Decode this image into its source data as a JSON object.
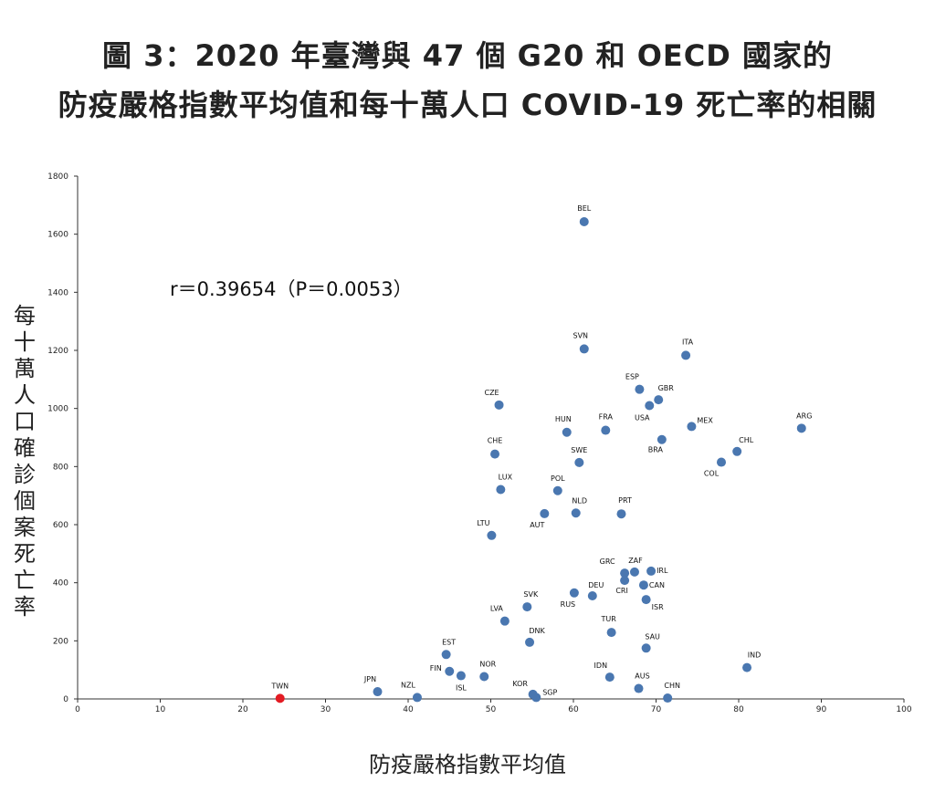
{
  "chart_data": {
    "type": "scatter",
    "title": "圖 3：2020 年臺灣與 47 個 G20 和 OECD 國家的",
    "subtitle": "防疫嚴格指數平均值和每十萬人口 COVID-19 死亡率的相關",
    "xlabel": "防疫嚴格指數平均值",
    "ylabel": "每十萬人口確診個案死亡率",
    "xlim": [
      0,
      100
    ],
    "ylim": [
      0,
      1800
    ],
    "xticks": [
      0,
      10,
      20,
      30,
      40,
      50,
      60,
      70,
      80,
      90,
      100
    ],
    "yticks": [
      0,
      200,
      400,
      600,
      800,
      1000,
      1200,
      1400,
      1600,
      1800
    ],
    "grid": false,
    "annotation": "r＝0.39654（P＝0.0053）",
    "point_color": "#4a77b0",
    "highlight_color": "#e31b23",
    "points": [
      {
        "label": "BEL",
        "x": 61.3,
        "y": 1643
      },
      {
        "label": "SVN",
        "x": 61.3,
        "y": 1205
      },
      {
        "label": "ITA",
        "x": 73.6,
        "y": 1183
      },
      {
        "label": "ESP",
        "x": 68.0,
        "y": 1066
      },
      {
        "label": "GBR",
        "x": 70.3,
        "y": 1030
      },
      {
        "label": "USA",
        "x": 69.2,
        "y": 1010
      },
      {
        "label": "CZE",
        "x": 51.0,
        "y": 1012
      },
      {
        "label": "HUN",
        "x": 59.2,
        "y": 918
      },
      {
        "label": "FRA",
        "x": 63.9,
        "y": 925
      },
      {
        "label": "MEX",
        "x": 74.3,
        "y": 938
      },
      {
        "label": "ARG",
        "x": 87.6,
        "y": 932
      },
      {
        "label": "BRA",
        "x": 70.7,
        "y": 893
      },
      {
        "label": "CHL",
        "x": 79.8,
        "y": 852
      },
      {
        "label": "CHE",
        "x": 50.5,
        "y": 843
      },
      {
        "label": "SWE",
        "x": 60.7,
        "y": 814
      },
      {
        "label": "COL",
        "x": 77.9,
        "y": 815
      },
      {
        "label": "LUX",
        "x": 51.2,
        "y": 721
      },
      {
        "label": "POL",
        "x": 58.1,
        "y": 717
      },
      {
        "label": "NLD",
        "x": 60.3,
        "y": 640
      },
      {
        "label": "AUT",
        "x": 56.5,
        "y": 638
      },
      {
        "label": "PRT",
        "x": 65.8,
        "y": 637
      },
      {
        "label": "LTU",
        "x": 50.1,
        "y": 563
      },
      {
        "label": "ZAF",
        "x": 67.4,
        "y": 437
      },
      {
        "label": "IRL",
        "x": 69.4,
        "y": 440
      },
      {
        "label": "GRC",
        "x": 66.2,
        "y": 433
      },
      {
        "label": "CRI",
        "x": 66.2,
        "y": 408
      },
      {
        "label": "CAN",
        "x": 68.5,
        "y": 392
      },
      {
        "label": "RUS",
        "x": 60.1,
        "y": 365
      },
      {
        "label": "DEU",
        "x": 62.3,
        "y": 355
      },
      {
        "label": "ISR",
        "x": 68.8,
        "y": 342
      },
      {
        "label": "SVK",
        "x": 54.4,
        "y": 317
      },
      {
        "label": "LVA",
        "x": 51.7,
        "y": 268
      },
      {
        "label": "TUR",
        "x": 64.6,
        "y": 229
      },
      {
        "label": "DNK",
        "x": 54.7,
        "y": 195
      },
      {
        "label": "SAU",
        "x": 68.8,
        "y": 175
      },
      {
        "label": "EST",
        "x": 44.6,
        "y": 153
      },
      {
        "label": "IND",
        "x": 81.0,
        "y": 108
      },
      {
        "label": "FIN",
        "x": 45.0,
        "y": 95
      },
      {
        "label": "ISL",
        "x": 46.4,
        "y": 80
      },
      {
        "label": "NOR",
        "x": 49.2,
        "y": 77
      },
      {
        "label": "IDN",
        "x": 64.4,
        "y": 75
      },
      {
        "label": "AUS",
        "x": 67.9,
        "y": 36
      },
      {
        "label": "JPN",
        "x": 36.3,
        "y": 25
      },
      {
        "label": "KOR",
        "x": 55.1,
        "y": 16
      },
      {
        "label": "SGP",
        "x": 55.5,
        "y": 5
      },
      {
        "label": "NZL",
        "x": 41.1,
        "y": 5
      },
      {
        "label": "CHN",
        "x": 71.4,
        "y": 3
      },
      {
        "label": "TWN",
        "x": 24.5,
        "y": 2,
        "highlight": true
      }
    ]
  }
}
